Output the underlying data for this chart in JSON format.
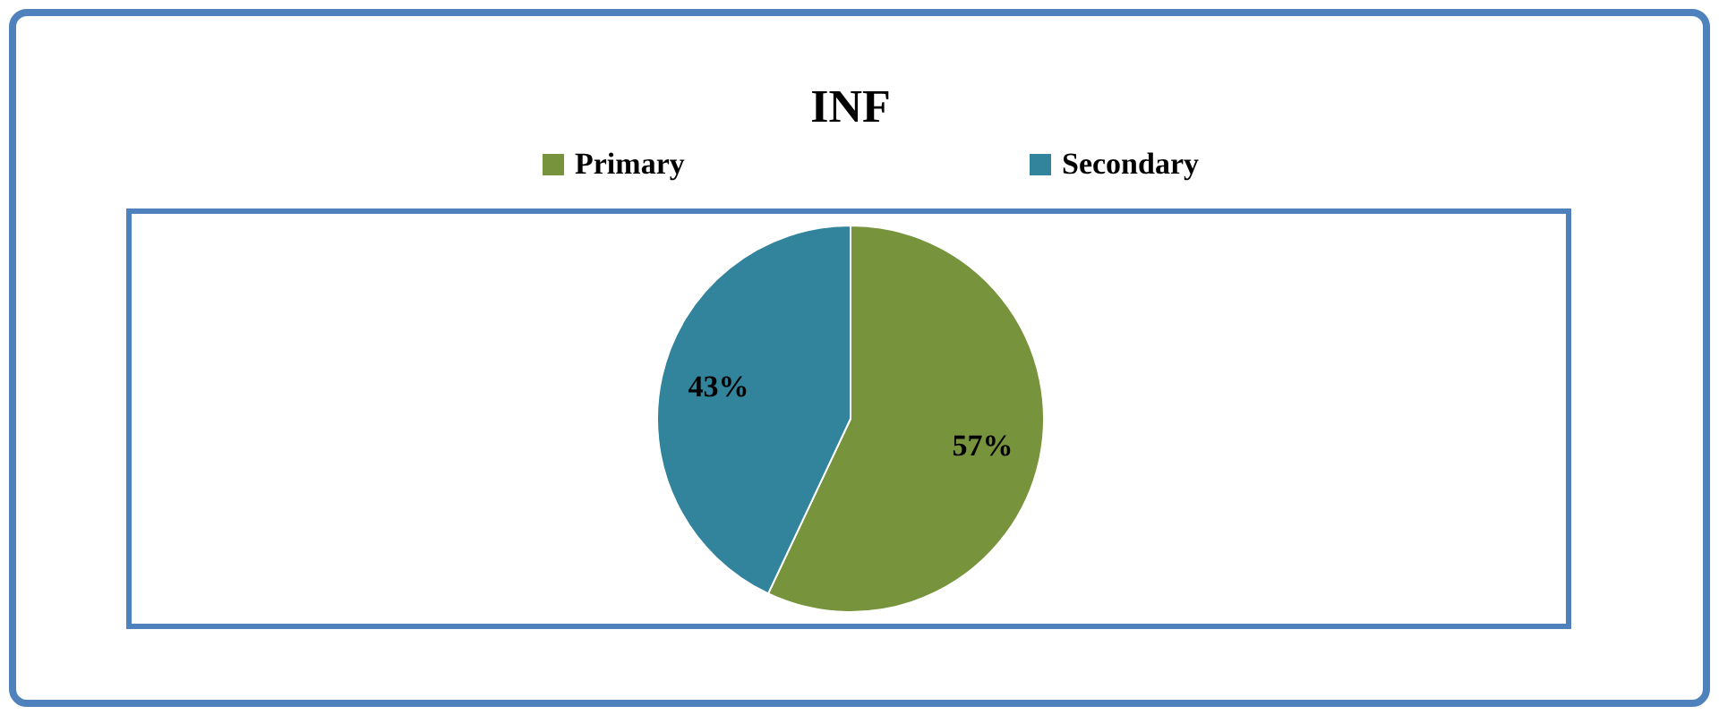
{
  "chart_data": {
    "type": "pie",
    "title": "INF",
    "categories": [
      "Primary",
      "Secondary"
    ],
    "values": [
      57,
      43
    ],
    "colors": [
      "#77933c",
      "#31849b"
    ],
    "value_labels": [
      "57%",
      "43%"
    ],
    "legend": "top"
  }
}
